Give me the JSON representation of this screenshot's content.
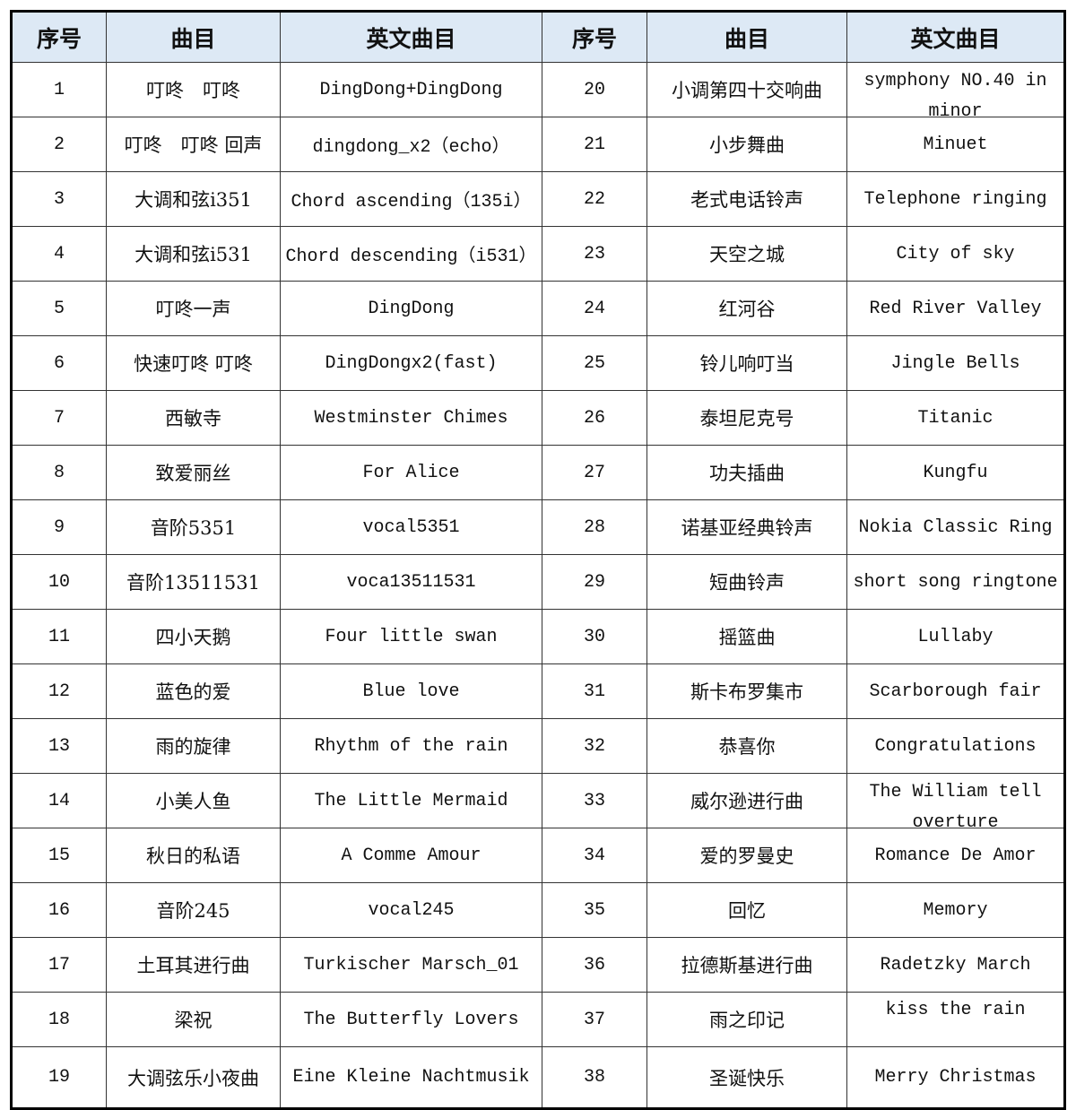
{
  "headers": [
    "序号",
    "曲目",
    "英文曲目",
    "序号",
    "曲目",
    "英文曲目"
  ],
  "header_bg": "#dde9f5",
  "rows": [
    [
      "1",
      "叮咚　叮咚",
      "DingDong+DingDong",
      "20",
      "小调第四十交响曲",
      "symphony NO.40 in minor"
    ],
    [
      "2",
      "叮咚　叮咚 回声",
      "dingdong_x2（echo）",
      "21",
      "小步舞曲",
      "Minuet"
    ],
    [
      "3",
      "大调和弦i351",
      "Chord ascending（135i）",
      "22",
      "老式电话铃声",
      "Telephone ringing"
    ],
    [
      "4",
      "大调和弦i531",
      "Chord descending（i531）",
      "23",
      "天空之城",
      "City of sky"
    ],
    [
      "5",
      "叮咚一声",
      "DingDong",
      "24",
      "红河谷",
      "Red River Valley"
    ],
    [
      "6",
      "快速叮咚 叮咚",
      "DingDongx2(fast)",
      "25",
      "铃儿响叮当",
      "Jingle Bells"
    ],
    [
      "7",
      "西敏寺",
      "Westminster Chimes",
      "26",
      "泰坦尼克号",
      "Titanic"
    ],
    [
      "8",
      "致爱丽丝",
      "For Alice",
      "27",
      "功夫插曲",
      "Kungfu"
    ],
    [
      "9",
      "音阶5351",
      "vocal5351",
      "28",
      "诺基亚经典铃声",
      "Nokia Classic Ring"
    ],
    [
      "10",
      "音阶13511531",
      "voca13511531",
      "29",
      "短曲铃声",
      "short song ringtone"
    ],
    [
      "11",
      "四小天鹅",
      "Four little swan",
      "30",
      "摇篮曲",
      "Lullaby"
    ],
    [
      "12",
      "蓝色的爱",
      "Blue love",
      "31",
      "斯卡布罗集市",
      "Scarborough fair"
    ],
    [
      "13",
      "雨的旋律",
      "Rhythm of the rain",
      "32",
      "恭喜你",
      "Congratulations"
    ],
    [
      "14",
      "小美人鱼",
      "The Little Mermaid",
      "33",
      "威尔逊进行曲",
      "The William tell overture"
    ],
    [
      "15",
      "秋日的私语",
      "A Comme Amour",
      "34",
      "爱的罗曼史",
      "Romance De Amor"
    ],
    [
      "16",
      "音阶245",
      "vocal245",
      "35",
      "回忆",
      "Memory"
    ],
    [
      "17",
      "土耳其进行曲",
      "Turkischer Marsch_01",
      "36",
      "拉德斯基进行曲",
      "Radetzky March"
    ],
    [
      "18",
      "梁祝",
      "The Butterfly Lovers",
      "37",
      "雨之印记",
      "kiss the rain"
    ],
    [
      "19",
      "大调弦乐小夜曲",
      "Eine Kleine Nachtmusik",
      "38",
      "圣诞快乐",
      "Merry Christmas"
    ]
  ]
}
